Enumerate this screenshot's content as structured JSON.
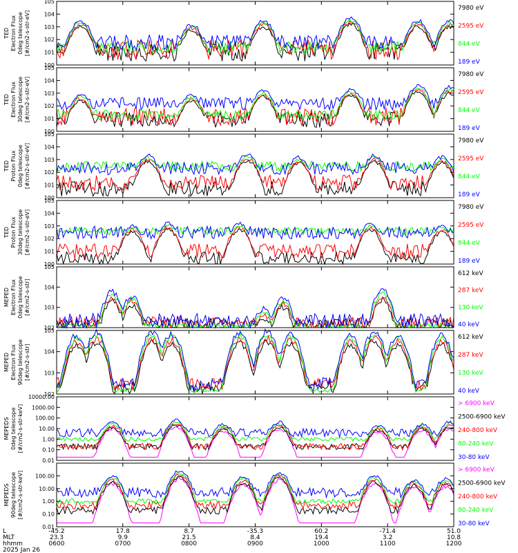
{
  "chart_data": [
    {
      "type": "line",
      "panel": "ted-electron-0deg",
      "ylabel": [
        "TED",
        "Electron Flux",
        "0deg telescope",
        "[#/cm2-s-str-eV]"
      ],
      "y_scale": "log",
      "y_ticks": [
        "10^0",
        "10^1",
        "10^2",
        "10^3",
        "10^4",
        "10^5"
      ],
      "ylim": [
        1,
        100000
      ],
      "series": [
        {
          "name": "7980 eV",
          "color": "#000000",
          "level": 10,
          "scatter": 0.7
        },
        {
          "name": "2595 eV",
          "color": "#ff0000",
          "level": 15,
          "scatter": 0.8
        },
        {
          "name": "844 eV",
          "color": "#00ff00",
          "level": 25,
          "scatter": 0.5
        },
        {
          "name": "189 eV",
          "color": "#0000ff",
          "level": 60,
          "scatter": 0.6
        }
      ],
      "peaks": [
        [
          0.06,
          3000
        ],
        [
          0.34,
          1500
        ],
        [
          0.52,
          3000
        ],
        [
          0.74,
          5000
        ],
        [
          0.91,
          3000
        ],
        [
          0.99,
          3000
        ]
      ]
    },
    {
      "type": "line",
      "panel": "ted-electron-30deg",
      "ylabel": [
        "TED",
        "Electron Flux",
        "30deg telescope",
        "[#/cm2-s-str-eV]"
      ],
      "y_scale": "log",
      "y_ticks": [
        "10^0",
        "10^1",
        "10^2",
        "10^3",
        "10^4",
        "10^5"
      ],
      "ylim": [
        1,
        100000
      ],
      "series": [
        {
          "name": "7980 eV",
          "color": "#000000",
          "level": 8,
          "scatter": 0.6
        },
        {
          "name": "2595 eV",
          "color": "#ff0000",
          "level": 15,
          "scatter": 0.7
        },
        {
          "name": "844 eV",
          "color": "#00ff00",
          "level": 20,
          "scatter": 0.4
        },
        {
          "name": "189 eV",
          "color": "#0000ff",
          "level": 150,
          "scatter": 0.5
        }
      ],
      "peaks": [
        [
          0.06,
          800
        ],
        [
          0.34,
          700
        ],
        [
          0.52,
          1500
        ],
        [
          0.74,
          2000
        ],
        [
          0.91,
          4000
        ],
        [
          0.99,
          3000
        ]
      ]
    },
    {
      "type": "line",
      "panel": "ted-proton-0deg",
      "ylabel": [
        "TED",
        "Proton Flux",
        "0deg telescope",
        "[#/cm2-s-str-eV]"
      ],
      "y_scale": "log",
      "y_ticks": [
        "10^0",
        "10^1",
        "10^2",
        "10^3",
        "10^4",
        "10^5"
      ],
      "ylim": [
        1,
        100000
      ],
      "series": [
        {
          "name": "7980 eV",
          "color": "#000000",
          "level": 5,
          "scatter": 0.6
        },
        {
          "name": "2595 eV",
          "color": "#ff0000",
          "level": 15,
          "scatter": 0.6
        },
        {
          "name": "844 eV",
          "color": "#00ff00",
          "level": 300,
          "scatter": 0.4
        },
        {
          "name": "189 eV",
          "color": "#0000ff",
          "level": 200,
          "scatter": 0.5
        }
      ],
      "peaks": [
        [
          0.23,
          2000
        ],
        [
          0.48,
          2500
        ],
        [
          0.61,
          1500
        ],
        [
          0.8,
          2000
        ],
        [
          0.97,
          1500
        ]
      ]
    },
    {
      "type": "line",
      "panel": "ted-proton-30deg",
      "ylabel": [
        "TED",
        "Proton Flux",
        "30deg telescope",
        "[#/cm2-s-str-eV]"
      ],
      "y_scale": "log",
      "y_ticks": [
        "10^0",
        "10^1",
        "10^2",
        "10^3",
        "10^4",
        "10^5"
      ],
      "ylim": [
        1,
        100000
      ],
      "series": [
        {
          "name": "7980 eV",
          "color": "#000000",
          "level": 3,
          "scatter": 0.5
        },
        {
          "name": "2595 eV",
          "color": "#ff0000",
          "level": 10,
          "scatter": 0.6
        },
        {
          "name": "844 eV",
          "color": "#00ff00",
          "level": 400,
          "scatter": 0.3
        },
        {
          "name": "189 eV",
          "color": "#0000ff",
          "level": 300,
          "scatter": 0.5
        }
      ],
      "peaks": [
        [
          0.19,
          1000
        ],
        [
          0.28,
          1500
        ],
        [
          0.46,
          1500
        ],
        [
          0.79,
          1500
        ],
        [
          0.97,
          1000
        ]
      ]
    },
    {
      "type": "line",
      "panel": "meped-electron-0deg",
      "ylabel": [
        "MEPED",
        "Electron Flux",
        "0deg telescope",
        "[#/cm2-s-str]"
      ],
      "y_scale": "log",
      "y_ticks": [
        "10^2",
        "10^3",
        "10^4",
        "10^5"
      ],
      "ylim": [
        100,
        100000
      ],
      "series": [
        {
          "name": "612 keV",
          "color": "#000000",
          "level": 150,
          "scatter": 0.3
        },
        {
          "name": "287 keV",
          "color": "#ff0000",
          "level": 180,
          "scatter": 0.3
        },
        {
          "name": "130 keV",
          "color": "#00ff00",
          "level": 120,
          "scatter": 0.1
        },
        {
          "name": "40 keV",
          "color": "#0000ff",
          "level": 200,
          "scatter": 0.4
        }
      ],
      "peaks": [
        [
          0.14,
          6000
        ],
        [
          0.19,
          4000
        ],
        [
          0.52,
          800
        ],
        [
          0.57,
          3000
        ],
        [
          0.82,
          7000
        ]
      ]
    },
    {
      "type": "line",
      "panel": "meped-electron-90deg",
      "ylabel": [
        "MEPED",
        "Electron Flux",
        "90deg telescope",
        "[#/cm2-s-str]"
      ],
      "y_scale": "log",
      "y_ticks": [
        "10^2",
        "10^3",
        "10^4",
        "10^5"
      ],
      "ylim": [
        100,
        100000
      ],
      "series": [
        {
          "name": "612 keV",
          "color": "#000000",
          "level": 200,
          "scatter": 0.3
        },
        {
          "name": "287 keV",
          "color": "#ff0000",
          "level": 300,
          "scatter": 0.3
        },
        {
          "name": "130 keV",
          "color": "#00ff00",
          "level": 150,
          "scatter": 0.1
        },
        {
          "name": "40 keV",
          "color": "#0000ff",
          "level": 300,
          "scatter": 0.3
        }
      ],
      "peaks": [
        [
          0.05,
          60000
        ],
        [
          0.1,
          80000
        ],
        [
          0.24,
          80000
        ],
        [
          0.29,
          70000
        ],
        [
          0.46,
          80000
        ],
        [
          0.53,
          90000
        ],
        [
          0.59,
          70000
        ],
        [
          0.74,
          60000
        ],
        [
          0.8,
          90000
        ],
        [
          0.86,
          60000
        ],
        [
          0.97,
          60000
        ]
      ]
    },
    {
      "type": "line",
      "panel": "mepeds-proton-0deg",
      "ylabel": [
        "MEPEDS",
        "0deg telescope",
        "[#/cm2-s-str-keV]"
      ],
      "y_scale": "log",
      "y_ticks": [
        "0.01",
        "0.10",
        "1.00",
        "10.00",
        "100.00",
        "1000.00",
        "10000.00"
      ],
      "ylim": [
        0.01,
        10000
      ],
      "series": [
        {
          "name": "> 6900 keV",
          "color": "#ff00ff",
          "level": 0.02,
          "scatter": 0
        },
        {
          "name": "2500-6900 keV",
          "color": "#000000",
          "level": 0.2,
          "scatter": 0.3
        },
        {
          "name": "240-800 keV",
          "color": "#ff0000",
          "level": 0.2,
          "scatter": 0.3
        },
        {
          "name": "80-240 keV",
          "color": "#00ff00",
          "level": 1,
          "scatter": 0.2
        },
        {
          "name": "30-80 keV",
          "color": "#0000ff",
          "level": 4,
          "scatter": 0.4
        }
      ],
      "peaks": [
        [
          0.14,
          40
        ],
        [
          0.3,
          60
        ],
        [
          0.42,
          25
        ],
        [
          0.56,
          40
        ],
        [
          0.81,
          20
        ],
        [
          0.92,
          25
        ],
        [
          0.99,
          40
        ]
      ]
    },
    {
      "type": "line",
      "panel": "mepeds-proton-90deg",
      "ylabel": [
        "MEPEDS",
        "90deg telescope",
        "[#/cm2-s-str-keV]"
      ],
      "y_scale": "log",
      "y_ticks": [
        "0.01",
        "0.10",
        "1.00",
        "10.00",
        "100.00"
      ],
      "ylim": [
        0.01,
        1000
      ],
      "series": [
        {
          "name": "> 6900 keV",
          "color": "#ff00ff",
          "level": 0.02,
          "scatter": 0
        },
        {
          "name": "2500-6900 keV",
          "color": "#000000",
          "level": 0.2,
          "scatter": 0.3
        },
        {
          "name": "240-800 keV",
          "color": "#ff0000",
          "level": 0.5,
          "scatter": 0.3
        },
        {
          "name": "80-240 keV",
          "color": "#00ff00",
          "level": 1,
          "scatter": 0.2
        },
        {
          "name": "30-80 keV",
          "color": "#0000ff",
          "level": 5,
          "scatter": 0.4
        }
      ],
      "peaks": [
        [
          0.14,
          100
        ],
        [
          0.31,
          250
        ],
        [
          0.47,
          80
        ],
        [
          0.56,
          200
        ],
        [
          0.8,
          100
        ],
        [
          0.9,
          50
        ],
        [
          0.98,
          60
        ]
      ]
    }
  ],
  "x_axis": {
    "row_labels": [
      "L",
      "MLT",
      "hhmm",
      "2025 Jan 26"
    ],
    "ticks": [
      {
        "pos": 0.0,
        "L": "-45.2",
        "MLT": "23.3",
        "hhmm": "0600"
      },
      {
        "pos": 0.2,
        "L": "17.8",
        "MLT": "9.9",
        "hhmm": "0700"
      },
      {
        "pos": 0.4,
        "L": "8.7",
        "MLT": "21.5",
        "hhmm": "0800"
      },
      {
        "pos": 0.6,
        "L": "-35.3",
        "MLT": "8.4",
        "hhmm": "0900"
      },
      {
        "pos": 0.8,
        "L": "60.2",
        "MLT": "19.4",
        "hhmm": "1000"
      },
      {
        "pos": 1.0,
        "L": "-71.4",
        "MLT": "3.2",
        "hhmm": "1100"
      },
      {
        "pos": 1.2,
        "L": "51.0",
        "MLT": "10.8",
        "hhmm": "1200"
      }
    ]
  }
}
